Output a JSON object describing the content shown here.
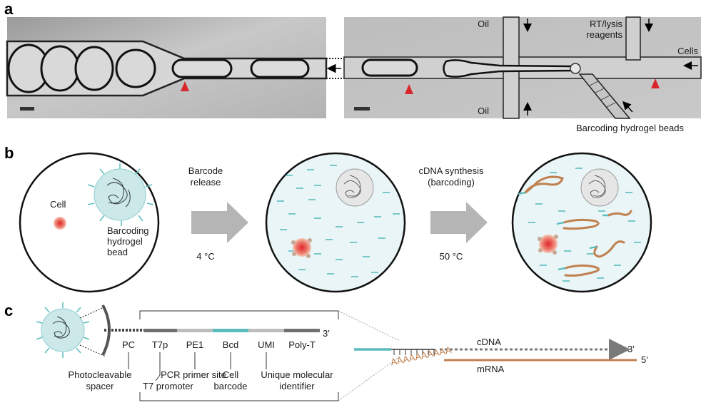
{
  "panel_a": {
    "letter": "a",
    "oil_top": "Oil",
    "oil_bottom": "Oil",
    "rt_lysis_line1": "RT/lysis",
    "rt_lysis_line2": "reagents",
    "cells": "Cells",
    "beads_caption": "Barcoding hydrogel beads"
  },
  "panel_b": {
    "letter": "b",
    "cell_label": "Cell",
    "bead_label_1": "Barcoding",
    "bead_label_2": "hydrogel",
    "bead_label_3": "bead",
    "step1_line1": "Barcode",
    "step1_line2": "release",
    "step1_temp": "4 °C",
    "step2_line1": "cDNA synthesis",
    "step2_line2": "(barcoding)",
    "step2_temp": "50 °C"
  },
  "panel_c": {
    "letter": "c",
    "segments": [
      "PC",
      "T7p",
      "PE1",
      "Bcd",
      "UMI",
      "Poly-T"
    ],
    "three_prime": "3′",
    "desc_photocleavable_1": "Photocleavable",
    "desc_photocleavable_2": "spacer",
    "desc_t7": "T7 promoter",
    "desc_pcr": "PCR primer site",
    "desc_cell_1": "Cell",
    "desc_cell_2": "barcode",
    "desc_umi_1": "Unique molecular",
    "desc_umi_2": "identifier",
    "cdna_label": "cDNA",
    "cdna_end": "3′",
    "mrna_label": "mRNA",
    "mrna_end": "5′",
    "polya": "AAAAAAAAAA"
  },
  "colors": {
    "teal": "#5bbcbf",
    "bead_fill": "#cde8e9",
    "mrna": "#c0804f",
    "arrow_gray": "#b5b5b5",
    "droplet_fill": "#e9f5f6",
    "marker_red": "#d8262b"
  }
}
